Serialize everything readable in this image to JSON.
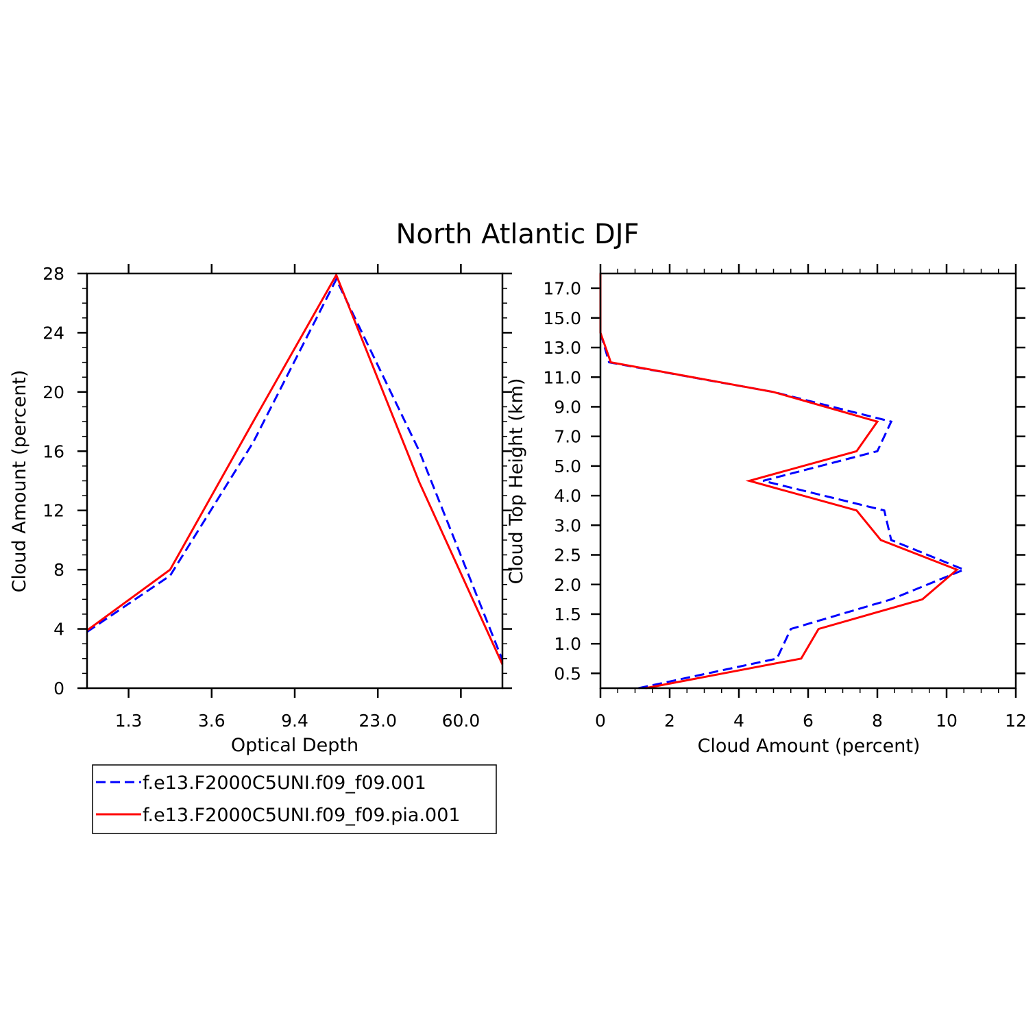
{
  "title": "North Atlantic DJF",
  "legend": [
    {
      "label": "f.e13.F2000C5UNI.f09_f09.001",
      "color": "#0000ff",
      "dash": "dashed"
    },
    {
      "label": "f.e13.F2000C5UNI.f09_f09.pia.001",
      "color": "#ff0000",
      "dash": "solid"
    }
  ],
  "chart_data": [
    {
      "type": "line",
      "xlabel": "Optical Depth",
      "ylabel": "Cloud Amount (percent)",
      "x_tick_labels": [
        "1.3",
        "3.6",
        "9.4",
        "23.0",
        "60.0"
      ],
      "x_tick_index": [
        0.5,
        1.5,
        2.5,
        3.5,
        4.5
      ],
      "xlim_index": [
        0,
        5
      ],
      "y_ticks": [
        0,
        4,
        8,
        12,
        16,
        20,
        24,
        28
      ],
      "ylim": [
        0,
        28
      ],
      "x_index": [
        0,
        1,
        2,
        3,
        4,
        5
      ],
      "series": [
        {
          "name": "f.e13.F2000C5UNI.f09_f09.001",
          "color": "#0000ff",
          "dash": "dashed",
          "values": [
            3.8,
            7.6,
            16.6,
            27.6,
            16.0,
            1.9
          ]
        },
        {
          "name": "f.e13.F2000C5UNI.f09_f09.pia.001",
          "color": "#ff0000",
          "dash": "solid",
          "values": [
            3.9,
            8.0,
            18.0,
            27.9,
            13.9,
            1.6
          ]
        }
      ]
    },
    {
      "type": "line",
      "xlabel": "Cloud Amount (percent)",
      "ylabel": "Cloud Top Height (km)",
      "x_ticks": [
        0,
        2,
        4,
        6,
        8,
        10,
        12
      ],
      "xlim": [
        0,
        12
      ],
      "y_tick_labels": [
        "0.5",
        "1.0",
        "1.5",
        "2.0",
        "2.5",
        "3.0",
        "4.0",
        "5.0",
        "7.0",
        "9.0",
        "11.0",
        "13.0",
        "15.0",
        "17.0"
      ],
      "y_tick_index": [
        0.5,
        1.5,
        2.5,
        3.5,
        4.5,
        5.5,
        6.5,
        7.5,
        8.5,
        9.5,
        10.5,
        11.5,
        12.5,
        13.5
      ],
      "ylim_index": [
        0,
        14
      ],
      "y_index": [
        0,
        1,
        2,
        3,
        4,
        5,
        6,
        7,
        8,
        9,
        10,
        11,
        12,
        13,
        14
      ],
      "series": [
        {
          "name": "f.e13.F2000C5UNI.f09_f09.001",
          "color": "#0000ff",
          "dash": "dashed",
          "values": [
            1.1,
            5.1,
            5.5,
            8.4,
            10.5,
            8.4,
            8.2,
            4.7,
            8.0,
            8.4,
            5.0,
            0.25,
            0.0,
            0.0,
            0.0
          ]
        },
        {
          "name": "f.e13.F2000C5UNI.f09_f09.pia.001",
          "color": "#ff0000",
          "dash": "solid",
          "values": [
            1.3,
            5.8,
            6.3,
            9.3,
            10.3,
            8.1,
            7.4,
            4.3,
            7.4,
            8.0,
            5.0,
            0.3,
            0.0,
            0.0,
            0.0
          ]
        }
      ]
    }
  ]
}
